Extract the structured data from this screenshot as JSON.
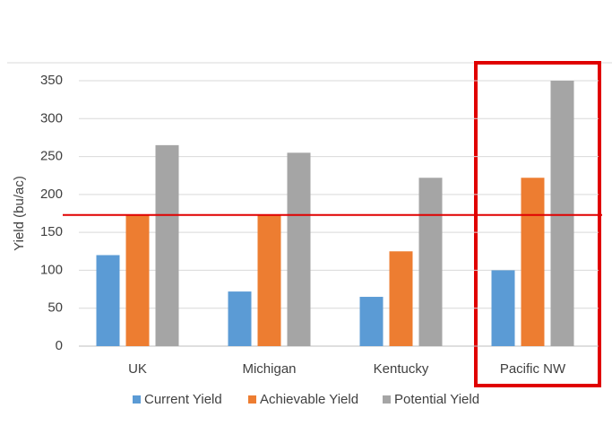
{
  "chart_data": {
    "type": "bar",
    "y_label": "Yield (bu/ac)",
    "categories": [
      "UK",
      "Michigan",
      "Kentucky",
      "Pacific NW"
    ],
    "series": [
      {
        "name": "Current Yield",
        "color": "#5b9bd5",
        "values": [
          120,
          72,
          65,
          100
        ]
      },
      {
        "name": "Achievable Yield",
        "color": "#ed7d31",
        "values": [
          173,
          173,
          125,
          222
        ]
      },
      {
        "name": "Potential Yield",
        "color": "#a5a5a5",
        "values": [
          265,
          255,
          222,
          350
        ]
      }
    ],
    "reference_line": {
      "value": 173,
      "color": "#e00000"
    },
    "ylim": [
      0,
      350
    ],
    "yticks": [
      0,
      50,
      100,
      150,
      200,
      250,
      300,
      350
    ],
    "grid": true,
    "legend": "bottom"
  }
}
